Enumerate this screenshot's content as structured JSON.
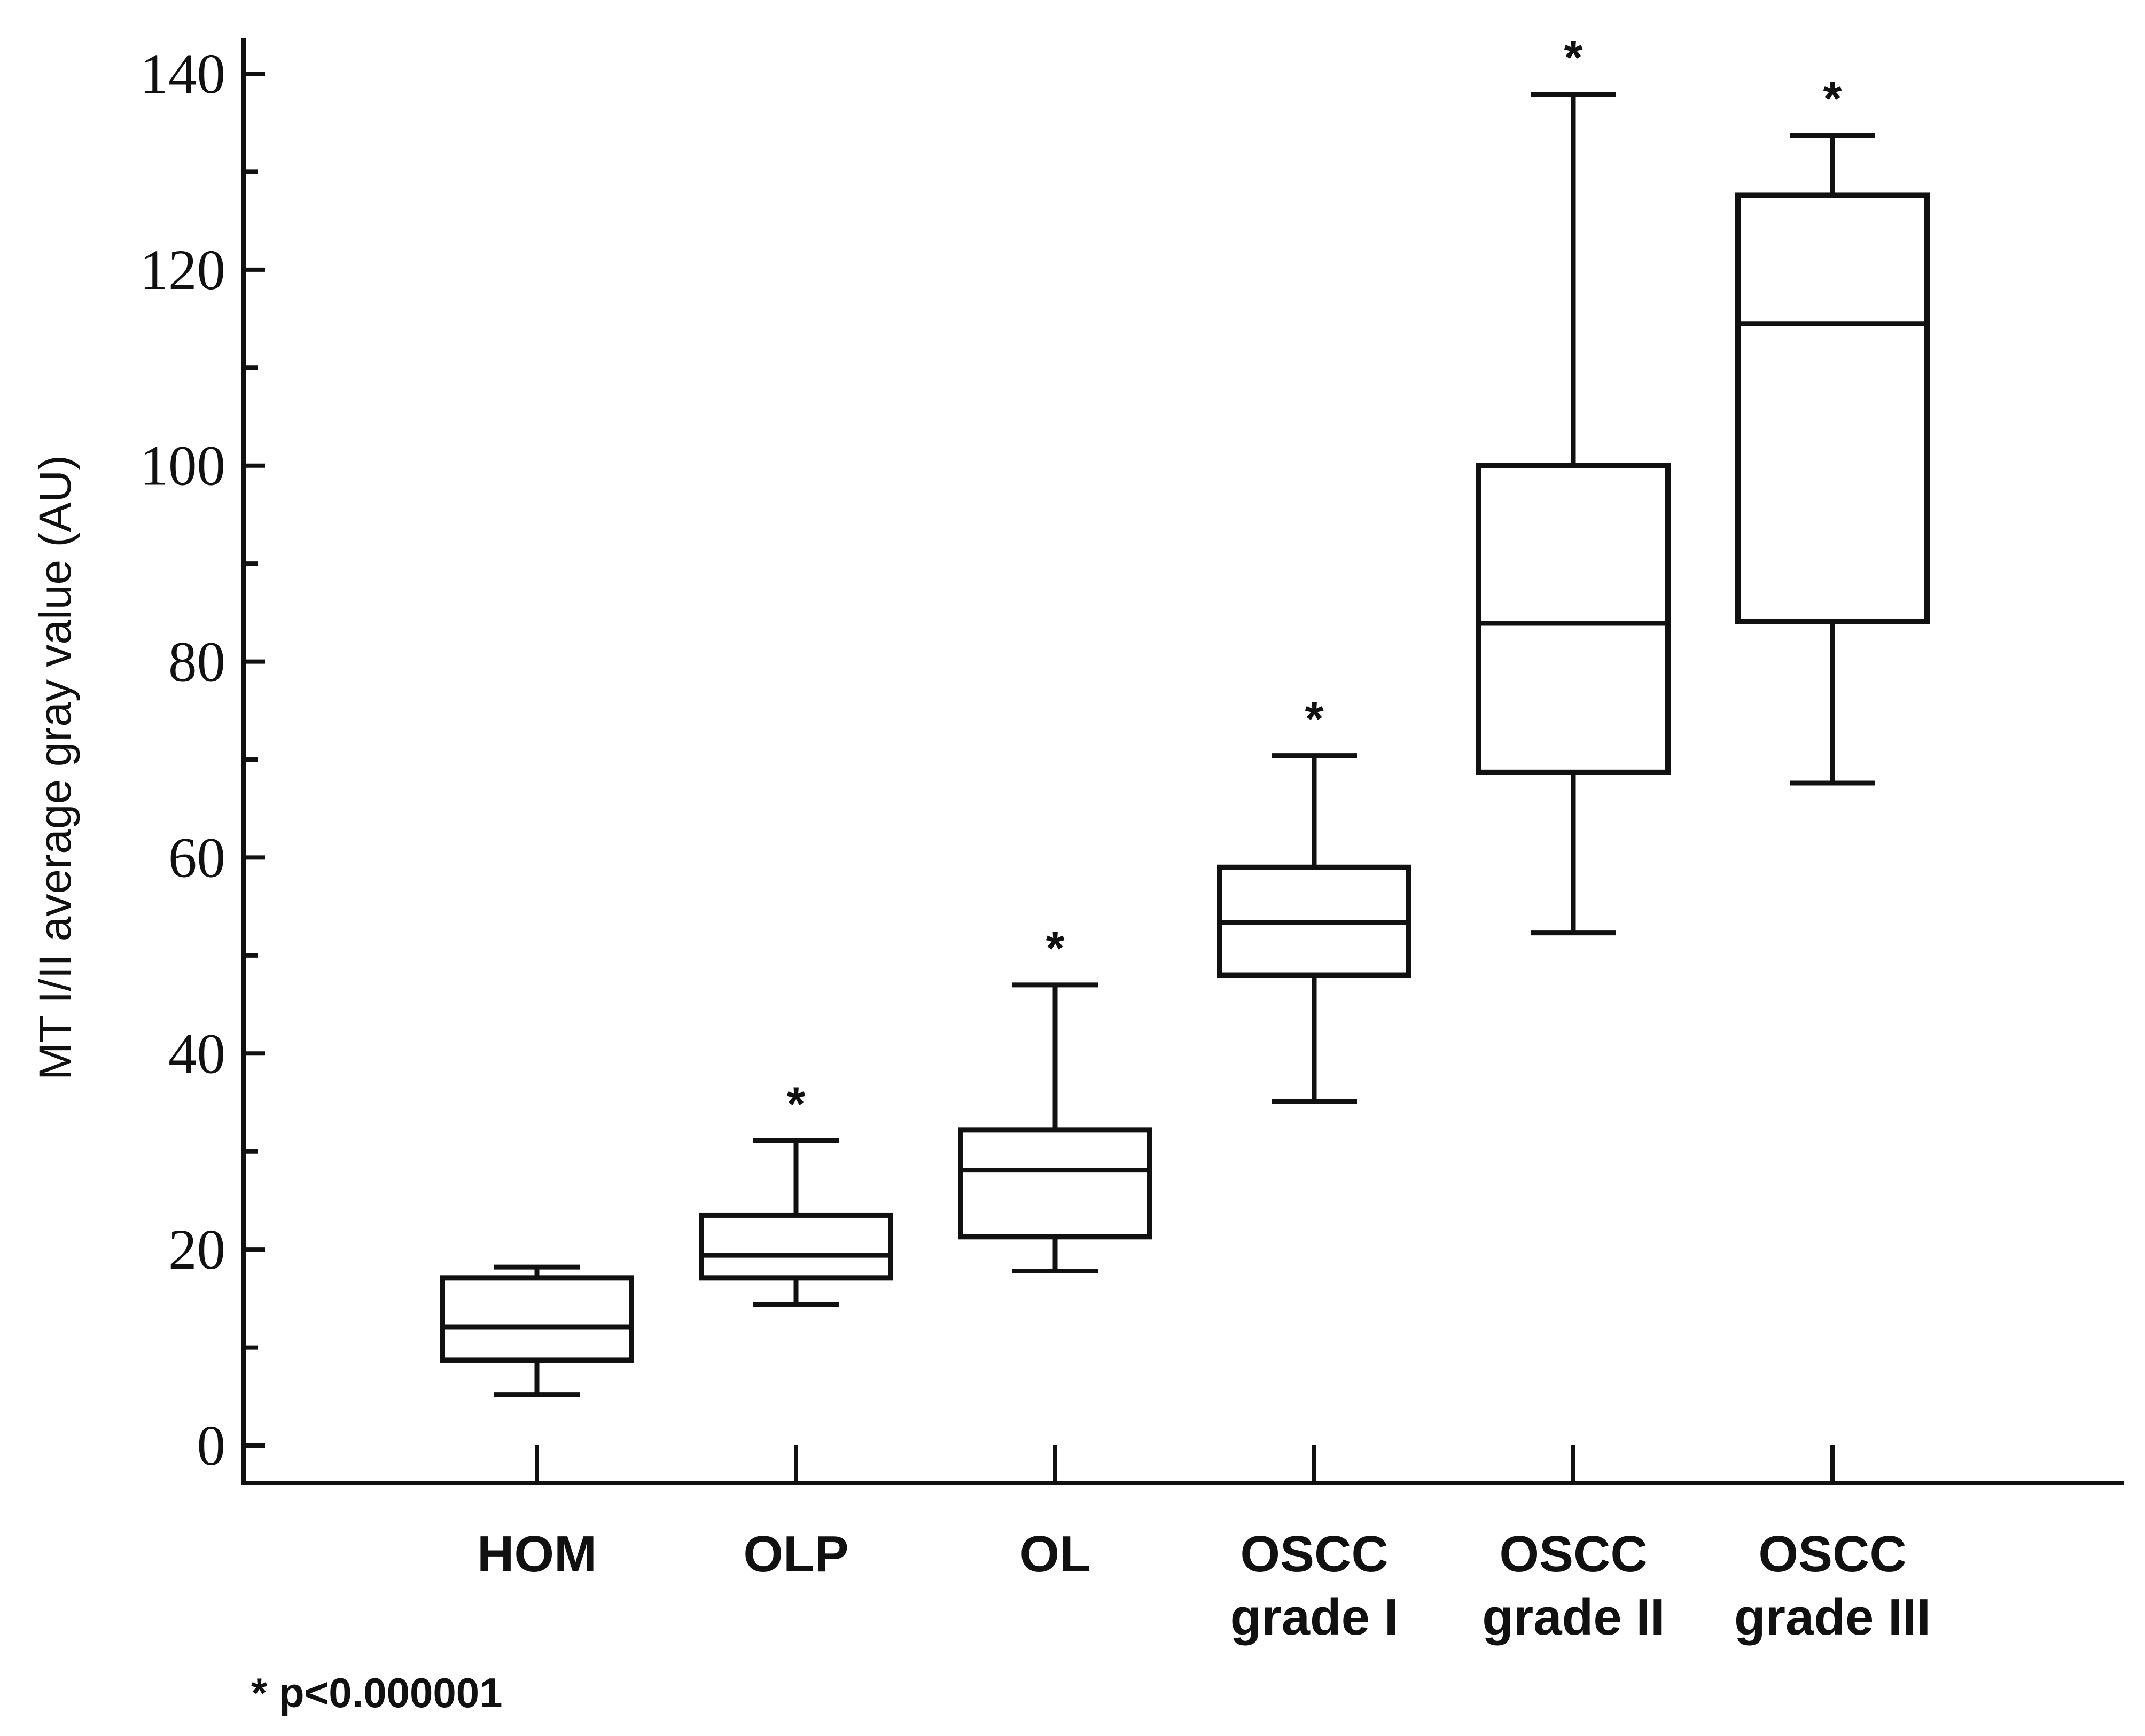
{
  "chart_data": {
    "type": "box",
    "ylabel": "MT I/II average gray value (AU)",
    "xlabel": "",
    "ylim": [
      0,
      140
    ],
    "yticks": [
      0,
      20,
      40,
      60,
      80,
      100,
      120,
      140
    ],
    "minor_tick_step": 10,
    "series": [
      {
        "name": "HOM",
        "label_lines": [
          "HOM"
        ],
        "min": 5.2,
        "q1": 8.7,
        "median": 12.1,
        "q3": 17.1,
        "max": 18.2,
        "mark": ""
      },
      {
        "name": "OLP",
        "label_lines": [
          "OLP"
        ],
        "min": 14.4,
        "q1": 17.1,
        "median": 19.4,
        "q3": 23.5,
        "max": 31.1,
        "mark": "*"
      },
      {
        "name": "OL",
        "label_lines": [
          "OL"
        ],
        "min": 17.8,
        "q1": 21.3,
        "median": 28.1,
        "q3": 32.2,
        "max": 47.0,
        "mark": "*"
      },
      {
        "name": "OSCC grade I",
        "label_lines": [
          "OSCC",
          "grade I"
        ],
        "min": 35.1,
        "q1": 48.0,
        "median": 53.4,
        "q3": 59.0,
        "max": 70.4,
        "mark": "*"
      },
      {
        "name": "OSCC grade II",
        "label_lines": [
          "OSCC",
          "grade II"
        ],
        "min": 52.3,
        "q1": 68.7,
        "median": 83.9,
        "q3": 100.0,
        "max": 137.9,
        "mark": "*"
      },
      {
        "name": "OSCC grade III",
        "label_lines": [
          "OSCC",
          "grade III"
        ],
        "min": 67.6,
        "q1": 84.1,
        "median": 114.5,
        "q3": 127.6,
        "max": 133.7,
        "mark": "*"
      }
    ],
    "footnote": "* p<0.000001"
  }
}
